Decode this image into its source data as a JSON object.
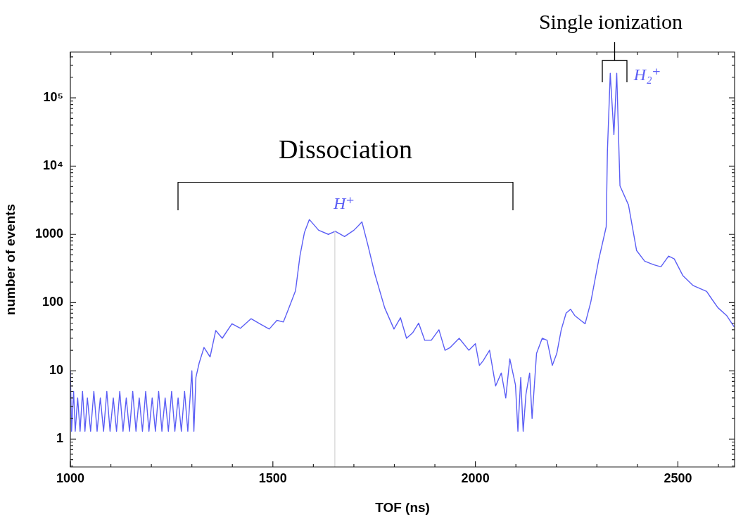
{
  "chart_data": {
    "type": "line",
    "xlabel": "TOF (ns)",
    "ylabel": "number of events",
    "log": "y",
    "grid": false,
    "legend": false,
    "marker": "none",
    "line_style": "solid",
    "xlim": [
      1000,
      2640
    ],
    "xticks": [
      1000,
      {
        "value": 1100,
        "label": null
      },
      {
        "value": 1200,
        "label": null
      },
      {
        "value": 1300,
        "label": null
      },
      {
        "value": 1400,
        "label": null
      },
      1500,
      {
        "value": 1600,
        "label": null
      },
      {
        "value": 1700,
        "label": null
      },
      {
        "value": 1800,
        "label": null
      },
      {
        "value": 1900,
        "label": null
      },
      2000,
      {
        "value": 2100,
        "label": null
      },
      {
        "value": 2200,
        "label": null
      },
      {
        "value": 2300,
        "label": null
      },
      {
        "value": 2400,
        "label": null
      },
      2500,
      {
        "value": 2600,
        "label": null
      }
    ],
    "ylim": [
      0.39,
      470000
    ],
    "yticks": [
      {
        "value": 0.4,
        "label": null
      },
      {
        "value": 0.5,
        "label": null
      },
      {
        "value": 0.6,
        "label": null
      },
      {
        "value": 0.7,
        "label": null
      },
      {
        "value": 0.8,
        "label": null
      },
      {
        "value": 0.9,
        "label": null
      },
      1,
      {
        "value": 2,
        "label": null
      },
      {
        "value": 3,
        "label": null
      },
      {
        "value": 4,
        "label": null
      },
      {
        "value": 5,
        "label": null
      },
      {
        "value": 6,
        "label": null
      },
      {
        "value": 7,
        "label": null
      },
      {
        "value": 8,
        "label": null
      },
      {
        "value": 9,
        "label": null
      },
      10,
      {
        "value": 20,
        "label": null
      },
      {
        "value": 30,
        "label": null
      },
      {
        "value": 40,
        "label": null
      },
      {
        "value": 50,
        "label": null
      },
      {
        "value": 60,
        "label": null
      },
      {
        "value": 70,
        "label": null
      },
      {
        "value": 80,
        "label": null
      },
      {
        "value": 90,
        "label": null
      },
      100,
      {
        "value": 200,
        "label": null
      },
      {
        "value": 300,
        "label": null
      },
      {
        "value": 400,
        "label": null
      },
      {
        "value": 500,
        "label": null
      },
      {
        "value": 600,
        "label": null
      },
      {
        "value": 700,
        "label": null
      },
      {
        "value": 800,
        "label": null
      },
      {
        "value": 900,
        "label": null
      },
      1000,
      {
        "value": 2000,
        "label": null
      },
      {
        "value": 3000,
        "label": null
      },
      {
        "value": 4000,
        "label": null
      },
      {
        "value": 5000,
        "label": null
      },
      {
        "value": 6000,
        "label": null
      },
      {
        "value": 7000,
        "label": null
      },
      {
        "value": 8000,
        "label": null
      },
      {
        "value": 9000,
        "label": null
      },
      {
        "value": 10000,
        "label": "10⁴"
      },
      {
        "value": 20000,
        "label": null
      },
      {
        "value": 30000,
        "label": null
      },
      {
        "value": 40000,
        "label": null
      },
      {
        "value": 50000,
        "label": null
      },
      {
        "value": 60000,
        "label": null
      },
      {
        "value": 70000,
        "label": null
      },
      {
        "value": 80000,
        "label": null
      },
      {
        "value": 90000,
        "label": null
      },
      {
        "value": 100000,
        "label": "10⁵"
      },
      {
        "value": 200000,
        "label": null
      },
      {
        "value": 300000,
        "label": null
      },
      {
        "value": 400000,
        "label": null
      }
    ],
    "ref_lines": [
      {
        "axis": "x",
        "value": 1653,
        "color": "#d3d3d3"
      }
    ],
    "annotations": [
      "Dissociation",
      "Single ionization",
      "H⁺",
      "H₂⁺"
    ],
    "series": [
      {
        "color": "#5b5ef5",
        "x": [
          1000,
          1003,
          1008,
          1012,
          1018,
          1024,
          1030,
          1036,
          1042,
          1050,
          1058,
          1066,
          1074,
          1082,
          1090,
          1098,
          1106,
          1114,
          1122,
          1130,
          1138,
          1146,
          1154,
          1162,
          1170,
          1178,
          1186,
          1194,
          1202,
          1210,
          1218,
          1226,
          1234,
          1242,
          1250,
          1258,
          1266,
          1274,
          1282,
          1290,
          1300,
          1305,
          1310,
          1318,
          1330,
          1345,
          1359,
          1375,
          1399,
          1420,
          1446,
          1470,
          1491,
          1510,
          1526,
          1538,
          1556,
          1567,
          1578,
          1590,
          1613,
          1637,
          1654,
          1677,
          1700,
          1720,
          1734,
          1752,
          1776,
          1799,
          1815,
          1830,
          1845,
          1860,
          1875,
          1891,
          1910,
          1925,
          1938,
          1960,
          1984,
          2000,
          2010,
          2019,
          2035,
          2050,
          2064,
          2075,
          2085,
          2099,
          2105,
          2112,
          2118,
          2125,
          2134,
          2140,
          2151,
          2165,
          2177,
          2190,
          2201,
          2212,
          2224,
          2235,
          2245,
          2260,
          2271,
          2285,
          2305,
          2323,
          2326,
          2333,
          2342,
          2349,
          2357,
          2378,
          2398,
          2418,
          2440,
          2458,
          2477,
          2491,
          2512,
          2538,
          2555,
          2571,
          2585,
          2599,
          2620,
          2639
        ],
        "values": [
          10,
          1.3,
          5,
          1.3,
          4,
          1.3,
          5,
          1.3,
          4,
          1.3,
          5,
          1.3,
          4,
          1.3,
          5,
          1.3,
          4,
          1.3,
          5,
          1.3,
          4,
          1.3,
          5,
          1.3,
          4,
          1.3,
          5,
          1.3,
          4,
          1.3,
          5,
          1.3,
          4,
          1.3,
          5,
          1.3,
          4,
          1.3,
          5,
          1.3,
          10,
          1.3,
          8,
          13,
          22,
          16,
          39,
          30,
          49,
          42,
          58,
          48,
          41,
          55,
          52,
          79,
          150,
          490,
          1070,
          1650,
          1150,
          1000,
          1110,
          930,
          1150,
          1520,
          720,
          260,
          84,
          41,
          60,
          30,
          36,
          50,
          28,
          28,
          40,
          20,
          22,
          30,
          20,
          25,
          12,
          14,
          20,
          6,
          9.3,
          4,
          15,
          6.2,
          1.3,
          8,
          1.3,
          4.6,
          9.3,
          2,
          18,
          30,
          28,
          12,
          18,
          40,
          70,
          80,
          65,
          55,
          49,
          102,
          437,
          1290,
          16700,
          230000,
          29000,
          230000,
          5150,
          2700,
          580,
          405,
          360,
          335,
          480,
          437,
          250,
          177,
          160,
          146,
          110,
          84,
          65,
          44
        ]
      }
    ]
  }
}
